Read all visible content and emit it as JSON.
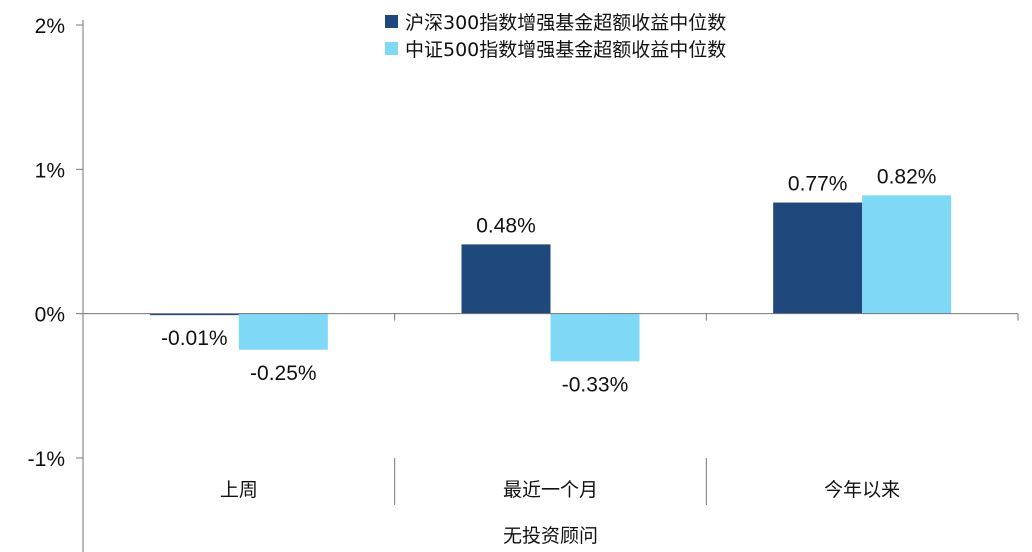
{
  "chart_data": {
    "type": "bar",
    "categories": [
      "上周",
      "最近一个月",
      "今年以来"
    ],
    "group_label": "无投资顾问",
    "series": [
      {
        "name": "沪深300指数增强基金超额收益中位数",
        "values": [
          -0.01,
          0.48,
          0.77
        ],
        "labels": [
          "-0.01%",
          "0.48%",
          "0.77%"
        ],
        "color": "#1f497d"
      },
      {
        "name": "中证500指数增强基金超额收益中位数",
        "values": [
          -0.25,
          -0.33,
          0.82
        ],
        "labels": [
          "-0.25%",
          "-0.33%",
          "0.82%"
        ],
        "color": "#80d8f7"
      }
    ],
    "ylim": [
      -1,
      2
    ],
    "yticks": [
      -1,
      0,
      1,
      2
    ],
    "ytick_labels": [
      "-1%",
      "0%",
      "1%",
      "2%"
    ],
    "legend_position": "top-center",
    "grid": false
  }
}
